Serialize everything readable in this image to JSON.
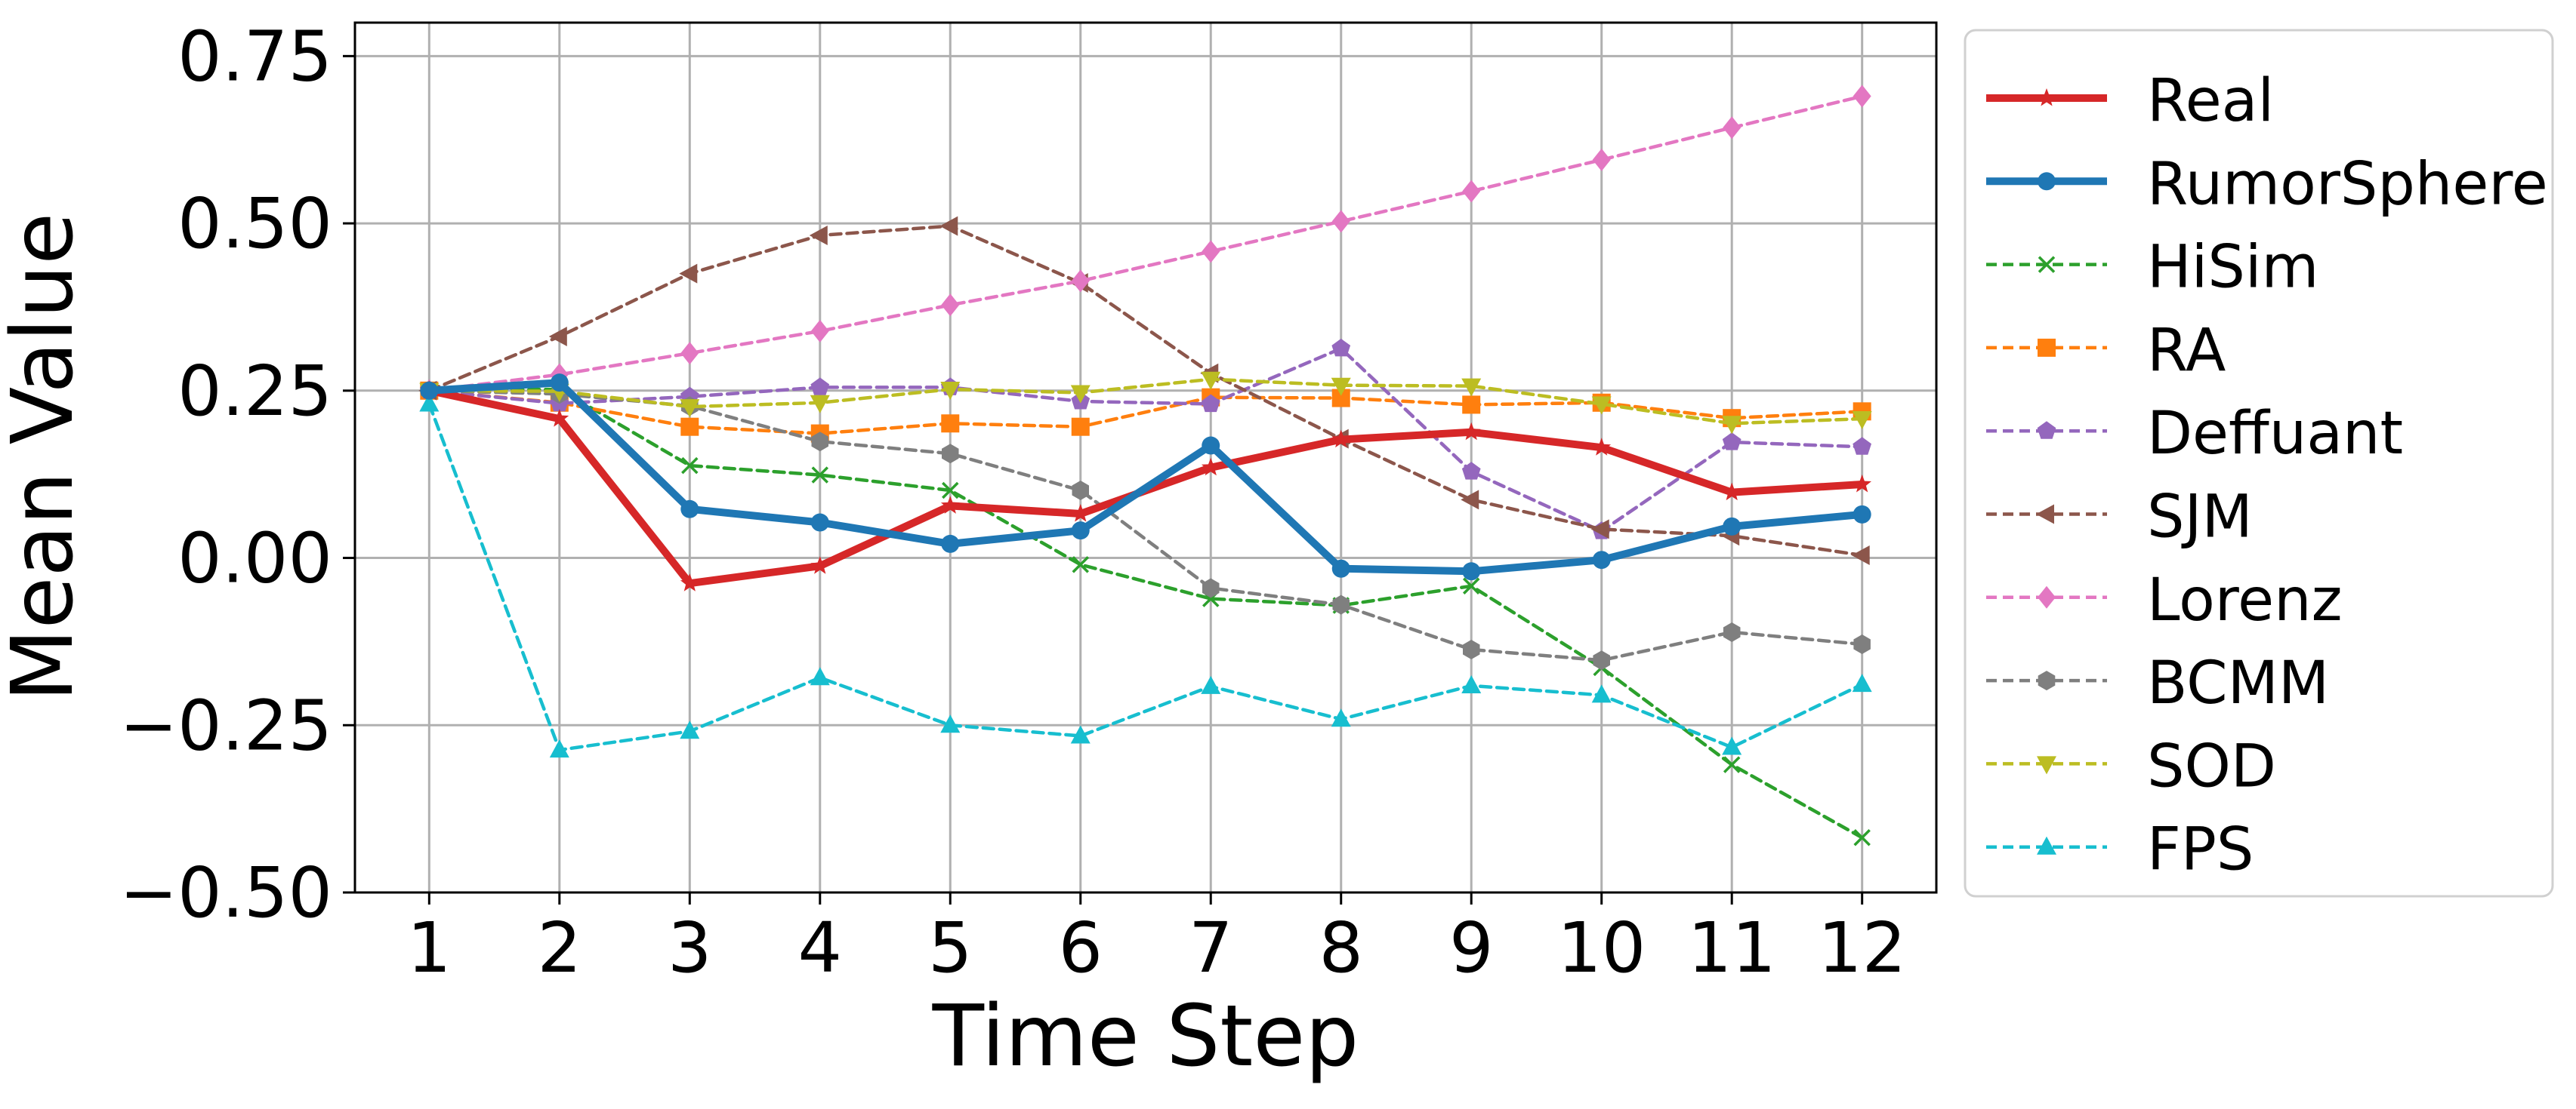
{
  "chart_data": {
    "type": "line",
    "title": "",
    "xlabel": "Time Step",
    "ylabel": "Mean Value",
    "x": [
      1,
      2,
      3,
      4,
      5,
      6,
      7,
      8,
      9,
      10,
      11,
      12
    ],
    "xticks": [
      "1",
      "2",
      "3",
      "4",
      "5",
      "6",
      "7",
      "8",
      "9",
      "10",
      "11",
      "12"
    ],
    "xlim": [
      0.43,
      12.57
    ],
    "ylim": [
      -0.5,
      0.8
    ],
    "yticks": [
      -0.5,
      -0.25,
      0.0,
      0.25,
      0.5,
      0.75
    ],
    "ytick_labels": [
      "−0.50",
      "−0.25",
      "0.00",
      "0.25",
      "0.50",
      "0.75"
    ],
    "grid": true,
    "legend_position": "outside-right",
    "series": [
      {
        "name": "Real",
        "color": "#d62728",
        "style": "solid",
        "marker": "star",
        "bold": true,
        "values": [
          0.25,
          0.208,
          -0.038,
          -0.012,
          0.078,
          0.066,
          0.135,
          0.177,
          0.188,
          0.165,
          0.098,
          0.11
        ]
      },
      {
        "name": "RumorSphere",
        "color": "#1f77b4",
        "style": "solid",
        "marker": "circle",
        "bold": true,
        "values": [
          0.25,
          0.262,
          0.073,
          0.053,
          0.021,
          0.041,
          0.168,
          -0.016,
          -0.02,
          -0.003,
          0.047,
          0.065
        ]
      },
      {
        "name": "HiSim",
        "color": "#2ca02c",
        "style": "dashed",
        "marker": "x",
        "values": [
          0.25,
          0.252,
          0.138,
          0.124,
          0.101,
          -0.01,
          -0.061,
          -0.071,
          -0.042,
          -0.164,
          -0.309,
          -0.418
        ]
      },
      {
        "name": "RA",
        "color": "#ff7f0e",
        "style": "dashed",
        "marker": "square",
        "values": [
          0.25,
          0.232,
          0.196,
          0.186,
          0.201,
          0.196,
          0.24,
          0.239,
          0.229,
          0.232,
          0.209,
          0.219
        ]
      },
      {
        "name": "Deffuant",
        "color": "#9467bd",
        "style": "dashed",
        "marker": "pentagon",
        "values": [
          0.25,
          0.231,
          0.241,
          0.255,
          0.255,
          0.234,
          0.23,
          0.313,
          0.129,
          0.04,
          0.173,
          0.166
        ]
      },
      {
        "name": "SJM",
        "color": "#8c564b",
        "style": "dashed",
        "marker": "triangle-left",
        "values": [
          0.25,
          0.331,
          0.425,
          0.482,
          0.496,
          0.411,
          0.276,
          0.178,
          0.087,
          0.043,
          0.033,
          0.004
        ]
      },
      {
        "name": "Lorenz",
        "color": "#e377c2",
        "style": "dashed",
        "marker": "diamond",
        "values": [
          0.25,
          0.274,
          0.306,
          0.339,
          0.378,
          0.414,
          0.458,
          0.503,
          0.548,
          0.595,
          0.643,
          0.69
        ]
      },
      {
        "name": "BCMM",
        "color": "#7f7f7f",
        "style": "dashed",
        "marker": "hexagon",
        "values": [
          0.25,
          0.245,
          0.227,
          0.174,
          0.156,
          0.101,
          -0.045,
          -0.07,
          -0.137,
          -0.153,
          -0.111,
          -0.129
        ]
      },
      {
        "name": "SOD",
        "color": "#bcbd22",
        "style": "dashed",
        "marker": "triangle-down",
        "values": [
          0.25,
          0.249,
          0.226,
          0.232,
          0.252,
          0.247,
          0.267,
          0.258,
          0.257,
          0.23,
          0.201,
          0.208
        ]
      },
      {
        "name": "FPS",
        "color": "#17becf",
        "style": "dashed",
        "marker": "triangle-up",
        "values": [
          0.23,
          -0.287,
          -0.259,
          -0.179,
          -0.25,
          -0.266,
          -0.192,
          -0.241,
          -0.191,
          -0.205,
          -0.283,
          -0.189
        ]
      }
    ]
  }
}
